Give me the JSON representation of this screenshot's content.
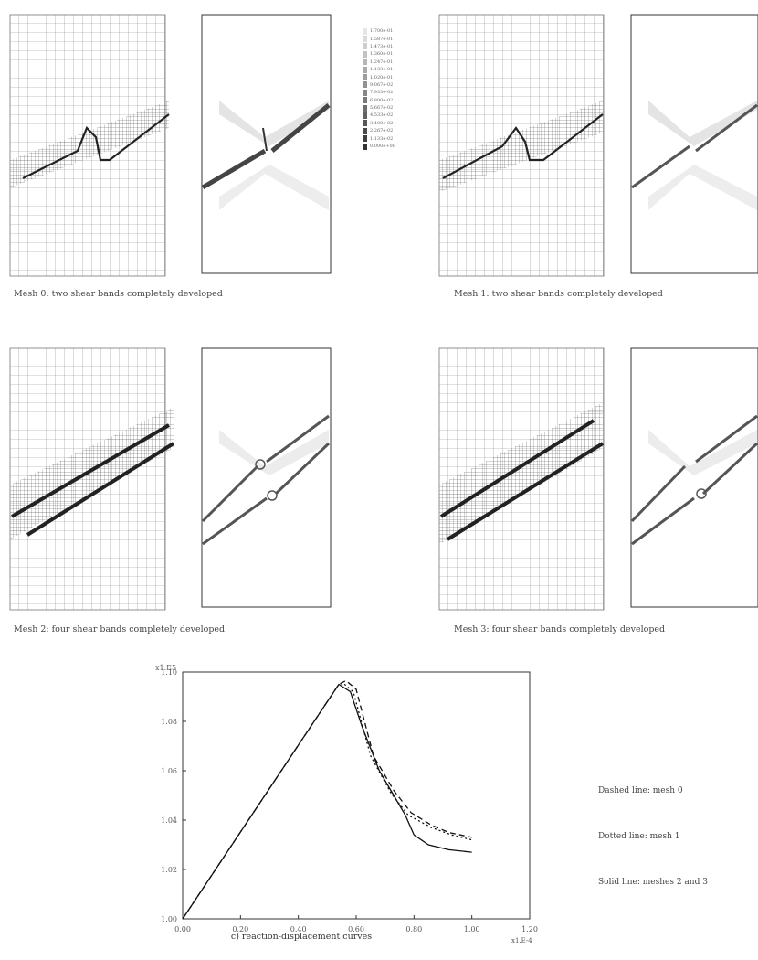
{
  "captions": {
    "c0": "Mesh 0: two shear bands completely developed",
    "c1": "Mesh 1: two shear bands completely developed",
    "c2": "Mesh 2: four shear bands completely developed",
    "c3": "Mesh 3: four shear bands completely developed"
  },
  "colorbar": {
    "labels": [
      "1.700e-01",
      "1.587e-01",
      "1.473e-01",
      "1.360e-01",
      "1.247e-01",
      "1.133e-01",
      "1.020e-01",
      "9.067e-02",
      "7.933e-02",
      "6.800e-02",
      "5.667e-02",
      "4.533e-02",
      "3.400e-02",
      "2.267e-02",
      "1.133e-02",
      "0.000e+00"
    ]
  },
  "chart_data": {
    "type": "line",
    "title": "",
    "caption": "c) reaction-displacement curves",
    "ylabel_top": "x1.E5",
    "xlabel_unit": "x1.E-4",
    "xlim": [
      0.0,
      1.0
    ],
    "ylim": [
      1.0,
      1.1
    ],
    "x_ticks": [
      "0.00",
      "0.20",
      "0.40",
      "0.60",
      "0.80",
      "1.00",
      "1.20"
    ],
    "y_ticks": [
      "1.10",
      "1.08",
      "1.06",
      "1.04",
      "1.02",
      "1.00"
    ],
    "y_ticks_vals": [
      1.1,
      1.08,
      1.06,
      1.04,
      1.02,
      1.0
    ],
    "y_ticks_raw": [
      "1.10",
      "1.08",
      "1.06",
      "1.04",
      "1.02",
      "1.00"
    ],
    "series": [
      {
        "name": "Dashed line: mesh 0",
        "style": "dashed",
        "x": [
          0.0,
          0.54,
          0.565,
          0.6,
          0.66,
          0.73,
          0.79,
          0.86,
          0.92,
          1.0
        ],
        "y": [
          1.0,
          1.095,
          1.0965,
          1.093,
          1.066,
          1.052,
          1.043,
          1.038,
          1.035,
          1.033
        ]
      },
      {
        "name": "Dotted line: mesh 1",
        "style": "dotted",
        "x": [
          0.0,
          0.54,
          0.555,
          0.59,
          0.65,
          0.72,
          0.78,
          0.86,
          0.93,
          1.0
        ],
        "y": [
          1.0,
          1.095,
          1.0955,
          1.092,
          1.066,
          1.051,
          1.042,
          1.037,
          1.034,
          1.032
        ]
      },
      {
        "name": "Solid line: meshes 2 and 3",
        "style": "solid",
        "x": [
          0.0,
          0.54,
          0.58,
          0.62,
          0.68,
          0.73,
          0.77,
          0.8,
          0.85,
          0.92,
          1.0
        ],
        "y": [
          1.0,
          1.095,
          1.092,
          1.078,
          1.06,
          1.05,
          1.042,
          1.034,
          1.03,
          1.028,
          1.027
        ]
      }
    ],
    "legend_placement": "right",
    "grid": false
  }
}
